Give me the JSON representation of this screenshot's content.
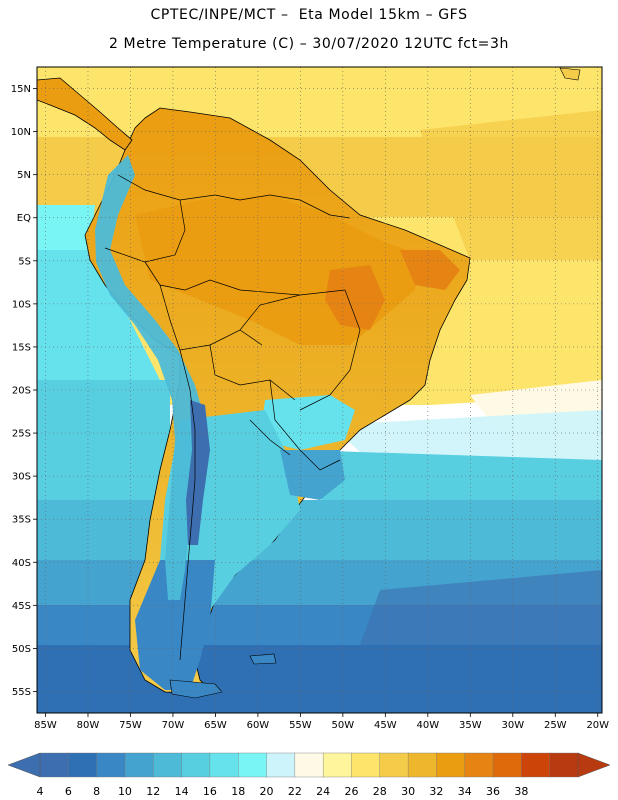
{
  "header": {
    "line1": "CPTEC/INPE/MCT –  Eta Model 15km – GFS",
    "line2": "2 Metre Temperature (C) – 30/07/2020 12UTC fct=3h"
  },
  "map": {
    "lat_labels": [
      "15N",
      "10N",
      "5N",
      "EQ",
      "5S",
      "10S",
      "15S",
      "20S",
      "25S",
      "30S",
      "35S",
      "40S",
      "45S",
      "50S",
      "55S"
    ],
    "lon_labels": [
      "85W",
      "80W",
      "75W",
      "70W",
      "65W",
      "60W",
      "55W",
      "50W",
      "45W",
      "40W",
      "35W",
      "30W",
      "25W",
      "20W"
    ],
    "lon_range": [
      -86,
      -19.5
    ],
    "lat_range": [
      -57.5,
      17.5
    ]
  },
  "colorbar": {
    "labels": [
      "4",
      "6",
      "8",
      "10",
      "12",
      "14",
      "16",
      "18",
      "20",
      "22",
      "24",
      "26",
      "28",
      "30",
      "32",
      "34",
      "36",
      "38"
    ],
    "colors": [
      "#3d6fb0",
      "#2f6fb3",
      "#3987c4",
      "#45a3cf",
      "#4dbad8",
      "#58cfe0",
      "#66e2ec",
      "#79f5f5",
      "#ccf4fa",
      "#fffae6",
      "#fff59c",
      "#fde46a",
      "#f5cc4a",
      "#edb62c",
      "#eb9d11",
      "#e68413",
      "#df6a0b",
      "#cc4408",
      "#b73a10"
    ]
  }
}
